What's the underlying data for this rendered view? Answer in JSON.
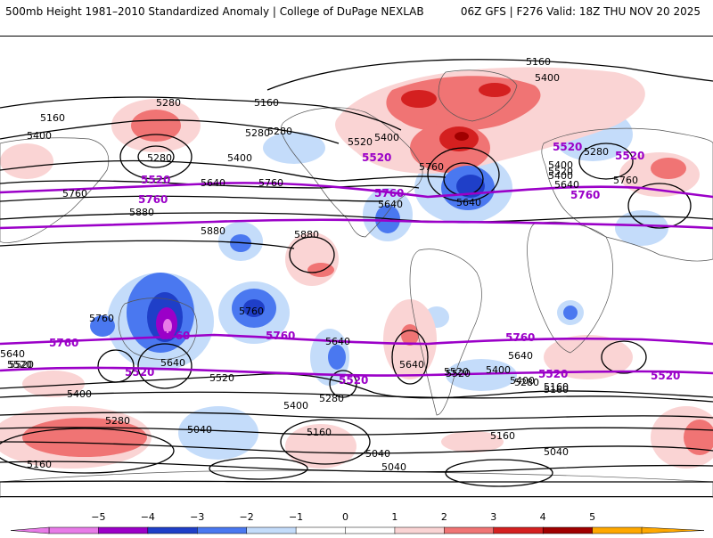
{
  "header": {
    "title_left": "500mb Height 1981–2010 Standardized Anomaly | College of DuPage NEXLAB",
    "title_right": "06Z GFS | F276 Valid: 18Z THU NOV 20 2025"
  },
  "colors": {
    "contour": "#000000",
    "highlight_contour": "#9b00c8",
    "anom_neg5": "#e87be8",
    "anom_neg4": "#9b00c8",
    "anom_neg3": "#1f3fc8",
    "anom_neg2": "#4a78f0",
    "anom_neg1": "#c4dcfa",
    "anom_pos1": "#fad4d4",
    "anom_pos2": "#f07474",
    "anom_pos3": "#d42020",
    "anom_pos4": "#a00000",
    "anom_pos5": "#ffa800"
  },
  "contours": {
    "labels_black": [
      "5160",
      "5400",
      "5280",
      "5280",
      "5160",
      "5400",
      "5280",
      "5400",
      "5520",
      "5400",
      "5280",
      "5160",
      "5400",
      "5640",
      "5640",
      "5640",
      "5640",
      "5760",
      "5760",
      "5880",
      "5880",
      "5880",
      "5280",
      "5400",
      "5520",
      "5760",
      "5760",
      "5640",
      "5760",
      "5640",
      "5760",
      "5640",
      "5520",
      "5640",
      "5640",
      "5520",
      "5400",
      "5520",
      "5400",
      "5280",
      "5160",
      "5400",
      "5280",
      "5040",
      "5160",
      "5160",
      "5040",
      "5040",
      "5040",
      "5160",
      "5520",
      "5400",
      "5520",
      "5280",
      "5160"
    ],
    "labels_purple": [
      "5520",
      "5520",
      "5520",
      "5520",
      "5760",
      "5760",
      "5760",
      "5760",
      "5760",
      "5760",
      "5760",
      "5520",
      "5520",
      "5520",
      "5520"
    ]
  },
  "colorbar": {
    "ticks": [
      "−5",
      "−4",
      "−3",
      "−2",
      "−1",
      "0",
      "1",
      "2",
      "3",
      "4",
      "5"
    ],
    "colors": [
      "#e87be8",
      "#9b00c8",
      "#1f3fc8",
      "#4a78f0",
      "#c4dcfa",
      "#ffffff",
      "#ffffff",
      "#fad4d4",
      "#f07474",
      "#d42020",
      "#a00000",
      "#ffa800"
    ]
  }
}
